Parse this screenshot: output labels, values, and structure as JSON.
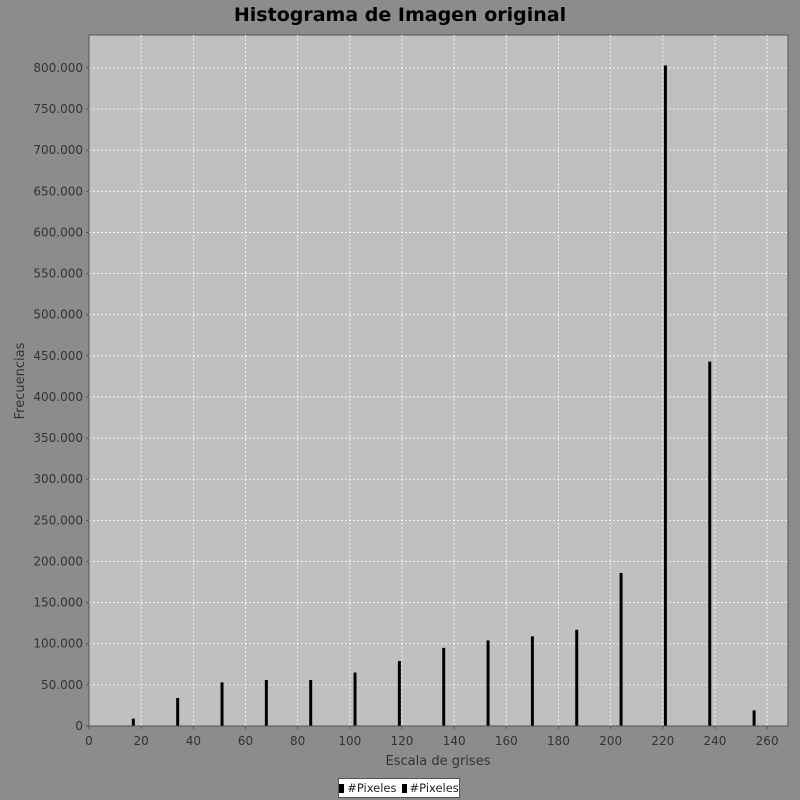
{
  "chart_data": {
    "type": "bar",
    "title": "Histograma de Imagen original",
    "xlabel": "Escala de grises",
    "ylabel": "Frecuencias",
    "xlim": [
      0,
      268
    ],
    "ylim": [
      0,
      840000
    ],
    "x_ticks": [
      0,
      20,
      40,
      60,
      80,
      100,
      120,
      140,
      160,
      180,
      200,
      220,
      240,
      260
    ],
    "y_ticks": [
      0,
      50000,
      100000,
      150000,
      200000,
      250000,
      300000,
      350000,
      400000,
      450000,
      500000,
      550000,
      600000,
      650000,
      700000,
      750000,
      800000
    ],
    "y_tick_labels": [
      "0",
      "50.000",
      "100.000",
      "150.000",
      "200.000",
      "250.000",
      "300.000",
      "350.000",
      "400.000",
      "450.000",
      "500.000",
      "550.000",
      "600.000",
      "650.000",
      "700.000",
      "750.000",
      "800.000"
    ],
    "grid": true,
    "legend_placement": "bottom-center",
    "series": [
      {
        "name": "#Pixeles",
        "color": "#000000",
        "x": [
          17,
          34,
          51,
          68,
          85,
          102,
          119,
          136,
          153,
          170,
          187,
          204,
          221,
          238,
          255
        ],
        "values": [
          9000,
          34000,
          53000,
          56000,
          56000,
          65000,
          79000,
          95000,
          104000,
          109000,
          117000,
          186000,
          803000,
          443000,
          19000
        ]
      }
    ],
    "legend": [
      "#Pixeles",
      "#Pixeles"
    ]
  },
  "colors": {
    "background": "#8c8c8c",
    "plot_background": "#c0c0c0",
    "gridline": "#ffffff",
    "bar": "#000000"
  }
}
